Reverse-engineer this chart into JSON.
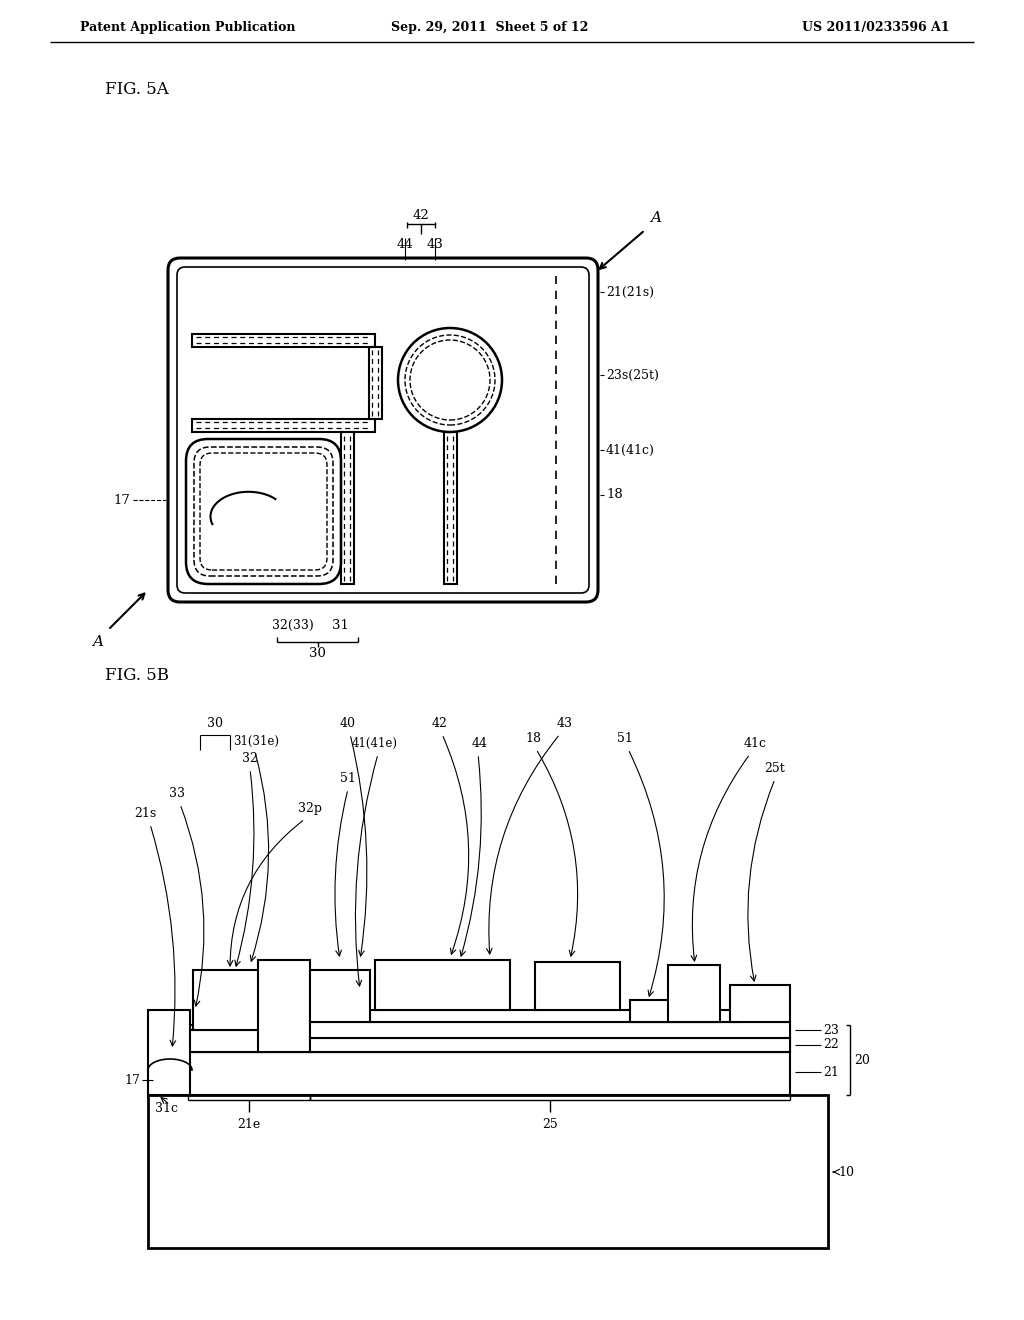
{
  "bg_color": "#ffffff",
  "text_color": "#000000",
  "line_color": "#000000",
  "header_left": "Patent Application Publication",
  "header_center": "Sep. 29, 2011  Sheet 5 of 12",
  "header_right": "US 2011/0233596 A1",
  "fig5a_label": "FIG. 5A",
  "fig5b_label": "FIG. 5B"
}
